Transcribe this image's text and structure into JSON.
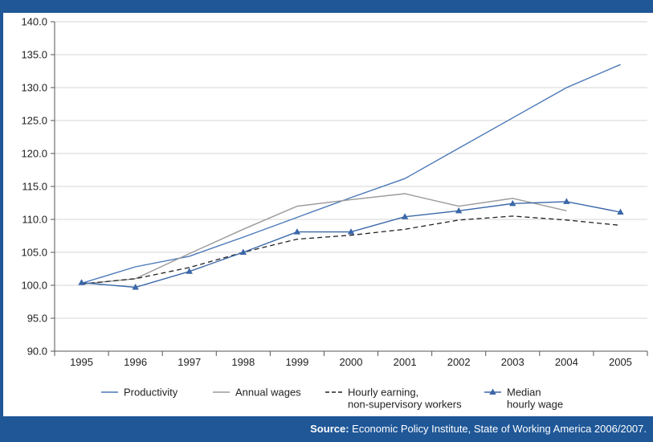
{
  "chart_data": {
    "type": "line",
    "categories": [
      "1995",
      "1996",
      "1997",
      "1998",
      "1999",
      "2000",
      "2001",
      "2002",
      "2003",
      "2004",
      "2005"
    ],
    "ylim": [
      90,
      140
    ],
    "yticks": [
      "90.0",
      "95.0",
      "100.0",
      "105.0",
      "110.0",
      "115.0",
      "120.0",
      "125.0",
      "130.0",
      "135.0",
      "140.0"
    ],
    "grid": "horizontal",
    "legend": "bottom",
    "series": [
      {
        "name": "Productivity",
        "color": "#4a78b8",
        "style": "solid",
        "marker": "none",
        "values": [
          100.3,
          102.8,
          104.4,
          107.3,
          110.3,
          113.3,
          116.2,
          120.8,
          125.4,
          130.0,
          133.5
        ]
      },
      {
        "name": "Annual wages",
        "color": "#9a9a9a",
        "style": "solid",
        "marker": "none",
        "values": [
          100.2,
          101.0,
          104.8,
          108.5,
          112.0,
          113.0,
          113.9,
          112.0,
          113.2,
          111.3,
          null
        ]
      },
      {
        "name": "Hourly earning, non-supervisory workers",
        "color": "#222222",
        "style": "dashed",
        "marker": "none",
        "values": [
          100.2,
          101.0,
          102.7,
          105.0,
          107.0,
          107.6,
          108.5,
          109.9,
          110.5,
          109.9,
          109.1
        ]
      },
      {
        "name": "Median hourly wage",
        "color": "#3b67a8",
        "style": "solid",
        "marker": "triangle",
        "values": [
          100.4,
          99.7,
          102.1,
          105.0,
          108.1,
          108.1,
          110.4,
          111.3,
          112.4,
          112.7,
          111.1
        ]
      }
    ]
  },
  "legend_items": [
    {
      "line1": "Productivity",
      "line2": ""
    },
    {
      "line1": "Annual wages",
      "line2": ""
    },
    {
      "line1": "Hourly earning,",
      "line2": "non-supervisory workers"
    },
    {
      "line1": "Median",
      "line2": "hourly wage"
    }
  ],
  "footer": {
    "source_label": "Source:",
    "source_text": " Economic Policy Institute, State of Working America 2006/2007."
  }
}
